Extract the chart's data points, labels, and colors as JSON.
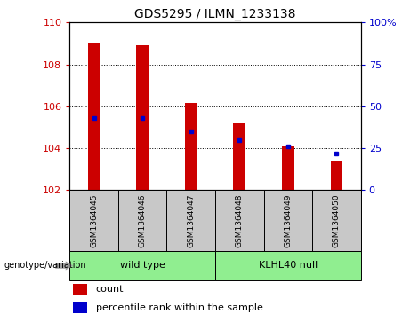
{
  "title": "GDS5295 / ILMN_1233138",
  "samples": [
    "GSM1364045",
    "GSM1364046",
    "GSM1364047",
    "GSM1364048",
    "GSM1364049",
    "GSM1364050"
  ],
  "count_values": [
    109.05,
    108.9,
    106.15,
    105.2,
    104.1,
    103.35
  ],
  "percentile_values": [
    43,
    43,
    35,
    30,
    26,
    22
  ],
  "baseline": 102,
  "ylim_left": [
    102,
    110
  ],
  "ylim_right": [
    0,
    100
  ],
  "yticks_left": [
    102,
    104,
    106,
    108,
    110
  ],
  "yticks_right": [
    0,
    25,
    50,
    75,
    100
  ],
  "ytick_right_labels": [
    "0",
    "25",
    "50",
    "75",
    "100%"
  ],
  "groups": [
    {
      "label": "wild type",
      "indices": [
        0,
        1,
        2
      ]
    },
    {
      "label": "KLHL40 null",
      "indices": [
        3,
        4,
        5
      ]
    }
  ],
  "bar_color": "#CC0000",
  "percentile_color": "#0000CC",
  "bar_width": 0.25,
  "sample_bg": "#C8C8C8",
  "green_color": "#90EE90",
  "legend_count_label": "count",
  "legend_percentile_label": "percentile rank within the sample",
  "xlabel_genotype": "genotype/variation"
}
